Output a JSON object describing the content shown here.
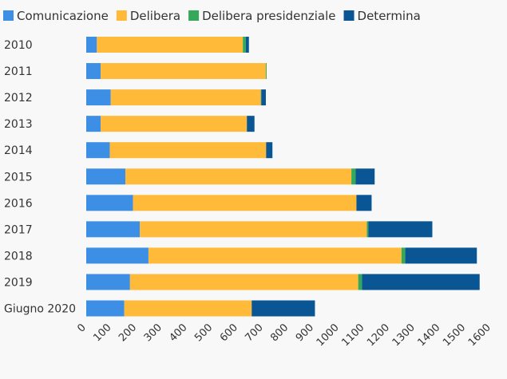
{
  "chart_data": {
    "type": "bar",
    "orientation": "horizontal",
    "stacked": true,
    "legend_position": "top",
    "grid": false,
    "xlim": [
      0,
      1600
    ],
    "x_ticks": [
      0,
      100,
      200,
      300,
      400,
      500,
      600,
      700,
      800,
      900,
      1000,
      1100,
      1200,
      1300,
      1400,
      1500,
      1600
    ],
    "categories": [
      "2010",
      "2011",
      "2012",
      "2013",
      "2014",
      "2015",
      "2016",
      "2017",
      "2018",
      "2019",
      "Giugno 2020"
    ],
    "series": [
      {
        "name": "Comunicazione",
        "color": "#3d8fe6",
        "values": [
          42,
          57,
          97,
          57,
          93,
          155,
          185,
          212,
          246,
          173,
          150
        ]
      },
      {
        "name": "Delibera",
        "color": "#ffba3a",
        "values": [
          577,
          653,
          593,
          578,
          618,
          893,
          883,
          897,
          1000,
          902,
          504
        ]
      },
      {
        "name": "Delibera presidenziale",
        "color": "#36a85a",
        "values": [
          12,
          3,
          2,
          0,
          0,
          17,
          0,
          6,
          15,
          15,
          0
        ]
      },
      {
        "name": "Determina",
        "color": "#0a5694",
        "values": [
          12,
          0,
          18,
          30,
          25,
          75,
          60,
          253,
          283,
          465,
          250
        ]
      }
    ]
  }
}
